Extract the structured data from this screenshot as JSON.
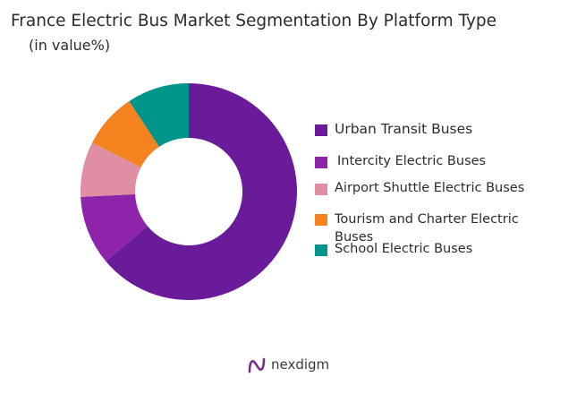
{
  "chart_data": {
    "type": "pie",
    "title": "France Electric Bus Market Segmentation By Platform Type",
    "subtitle": "(in value%)",
    "categories": [
      "Urban Transit Buses",
      "Intercity Electric Buses",
      "Airport Shuttle Electric Buses",
      "Tourism and Charter Electric Buses",
      "School Electric Buses"
    ],
    "values": [
      62,
      10,
      8,
      8,
      9
    ],
    "colors": [
      "#6a1b9a",
      "#8e24aa",
      "#e08ea4",
      "#f4821f",
      "#00958a"
    ],
    "legend_position": "right"
  },
  "legend": {
    "items": [
      {
        "label": "Urban Transit Buses",
        "color": "#6a1b9a"
      },
      {
        "label": "Intercity Electric Buses",
        "color": "#8e24aa"
      },
      {
        "label": "Airport Shuttle Electric Buses",
        "color": "#e08ea4"
      },
      {
        "label": "Tourism and Charter Electric Buses",
        "color": "#f4821f"
      },
      {
        "label": "School Electric Buses",
        "color": "#00958a"
      }
    ]
  },
  "brand": {
    "name": "nexdigm",
    "icon": "nexdigm-logo-icon",
    "color": "#7b2d8e"
  }
}
